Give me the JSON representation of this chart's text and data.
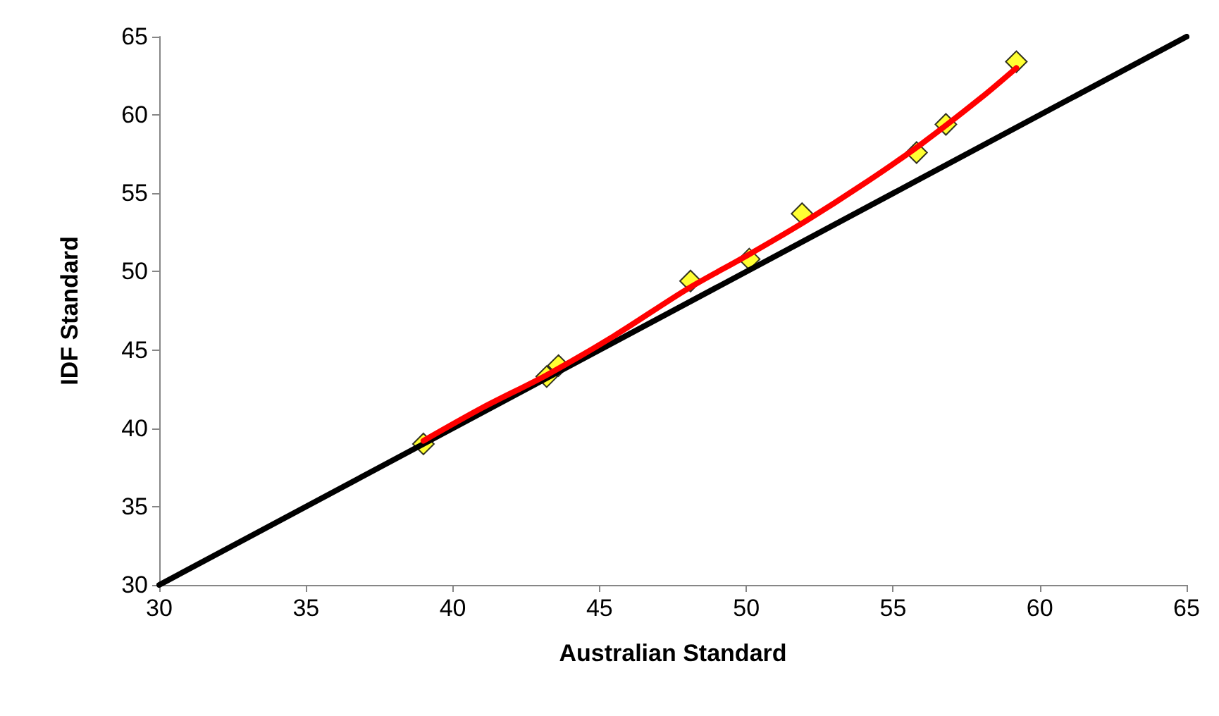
{
  "chart_data": {
    "type": "scatter",
    "xlabel": "Australian Standard",
    "ylabel": "IDF Standard",
    "xlim": [
      30,
      65
    ],
    "xticks": [
      30,
      35,
      40,
      45,
      50,
      55,
      60,
      65
    ],
    "ylim": [
      30,
      65
    ],
    "yticks": [
      30,
      35,
      40,
      45,
      50,
      55,
      60,
      65
    ],
    "grid": false,
    "series": [
      {
        "type": "line",
        "color": "#000000",
        "x": [
          30,
          65
        ],
        "values": [
          30,
          65
        ],
        "marker": "none"
      },
      {
        "type": "line",
        "color": "#ff0000",
        "x": [
          39,
          41,
          43.2,
          45.5,
          48,
          50,
          52,
          54,
          56,
          58,
          59.2
        ],
        "values": [
          39.2,
          41.3,
          43.4,
          45.9,
          48.9,
          51.0,
          53.2,
          55.6,
          58.2,
          61.1,
          63.0
        ],
        "marker": "none"
      },
      {
        "color": "#ffff00",
        "x": [
          39,
          43.2,
          43.6,
          48.1,
          50.1,
          51.9,
          55.8,
          56.8,
          59.2
        ],
        "values": [
          39,
          43.3,
          44,
          49.4,
          50.8,
          53.7,
          57.6,
          59.4,
          63.4
        ],
        "marker": "diamond"
      }
    ]
  }
}
